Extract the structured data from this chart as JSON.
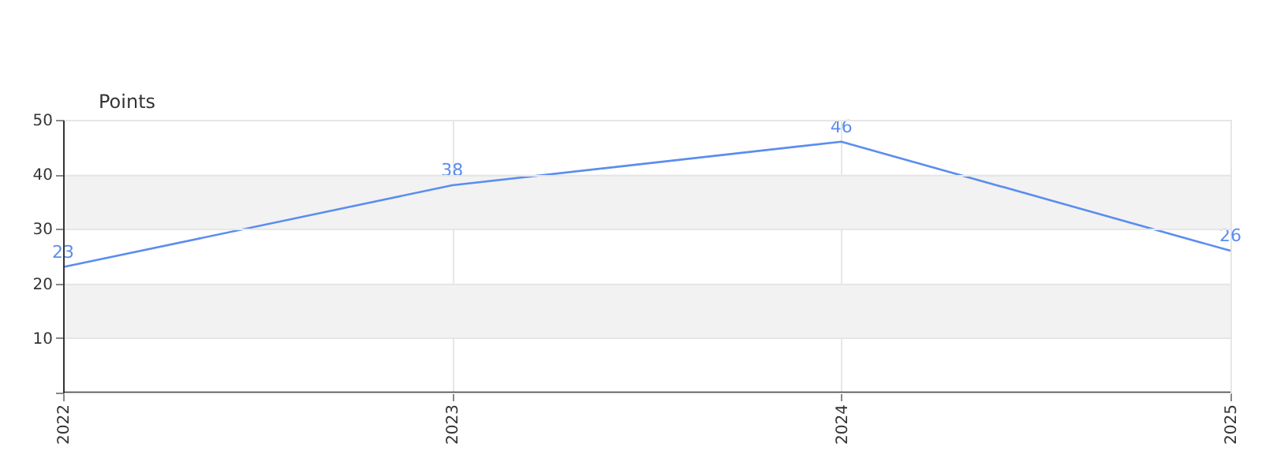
{
  "chart_data": {
    "type": "line",
    "ylabel": "Points",
    "x": [
      2022,
      2023,
      2024,
      2025
    ],
    "series": [
      {
        "color": "#5b8def",
        "values": [
          23,
          38,
          46,
          26
        ]
      }
    ],
    "xlim": [
      2022,
      2025
    ],
    "xticks": [
      2022,
      2023,
      2024,
      2025
    ],
    "ylim": [
      0,
      50
    ],
    "yticks": [
      {
        "value": 0,
        "label": null
      },
      10,
      20,
      30,
      40,
      50
    ],
    "bands": [
      {
        "axis": "y",
        "from": 10,
        "to": 20,
        "color": "#f2f2f2"
      },
      {
        "axis": "y",
        "from": 30,
        "to": 40,
        "color": "#f2f2f2"
      }
    ],
    "grid": true,
    "data_labels": true,
    "marker": "none",
    "line_style": "solid"
  }
}
